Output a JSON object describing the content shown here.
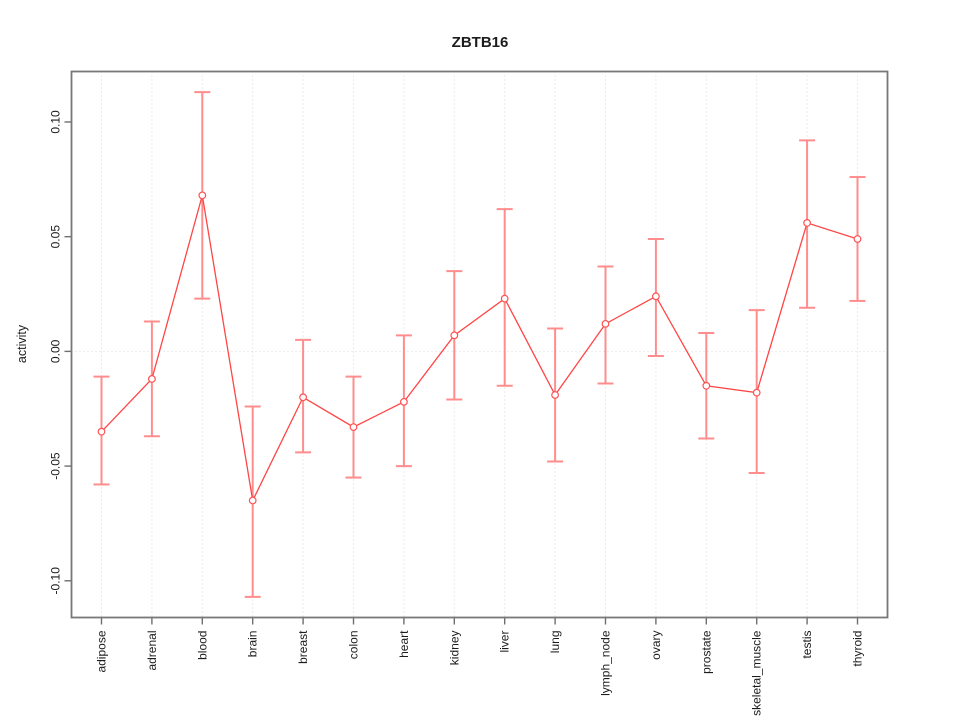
{
  "chart_data": {
    "type": "line",
    "title": "ZBTB16",
    "xlabel": "",
    "ylabel": "activity",
    "categories": [
      "adipose",
      "adrenal",
      "blood",
      "brain",
      "breast",
      "colon",
      "heart",
      "kidney",
      "liver",
      "lung",
      "lymph_node",
      "ovary",
      "prostate",
      "skeletal_muscle",
      "testis",
      "thyroid"
    ],
    "series": [
      {
        "name": "activity",
        "values": [
          -0.035,
          -0.012,
          0.068,
          -0.065,
          -0.02,
          -0.033,
          -0.022,
          0.007,
          0.023,
          -0.019,
          0.012,
          0.024,
          -0.015,
          -0.018,
          0.056,
          0.049
        ],
        "lower": [
          -0.058,
          -0.037,
          0.023,
          -0.107,
          -0.044,
          -0.055,
          -0.05,
          -0.021,
          -0.015,
          -0.048,
          -0.014,
          -0.002,
          -0.038,
          -0.053,
          0.019,
          0.022
        ],
        "upper": [
          -0.011,
          0.013,
          0.113,
          -0.024,
          0.005,
          -0.011,
          0.007,
          0.035,
          0.062,
          0.01,
          0.037,
          0.049,
          0.008,
          0.018,
          0.092,
          0.076
        ]
      }
    ],
    "ylim": [
      -0.116,
      0.122
    ],
    "yticks": [
      -0.1,
      -0.05,
      0.0,
      0.05,
      0.1
    ],
    "ytick_labels": [
      "-0.10",
      "-0.05",
      "0.00",
      "0.05",
      "0.10"
    ],
    "grid": "vertical-dotted-per-category + dotted-zero-line",
    "legend": "none",
    "marker": "open-circle",
    "colors": {
      "line": "#ff4545",
      "point": "#ff5050",
      "errorbar": "#ff8d8d",
      "grid": "#d9d9d9",
      "box": "#787878",
      "text": "#1c1c1c",
      "background": "#ffffff"
    }
  }
}
